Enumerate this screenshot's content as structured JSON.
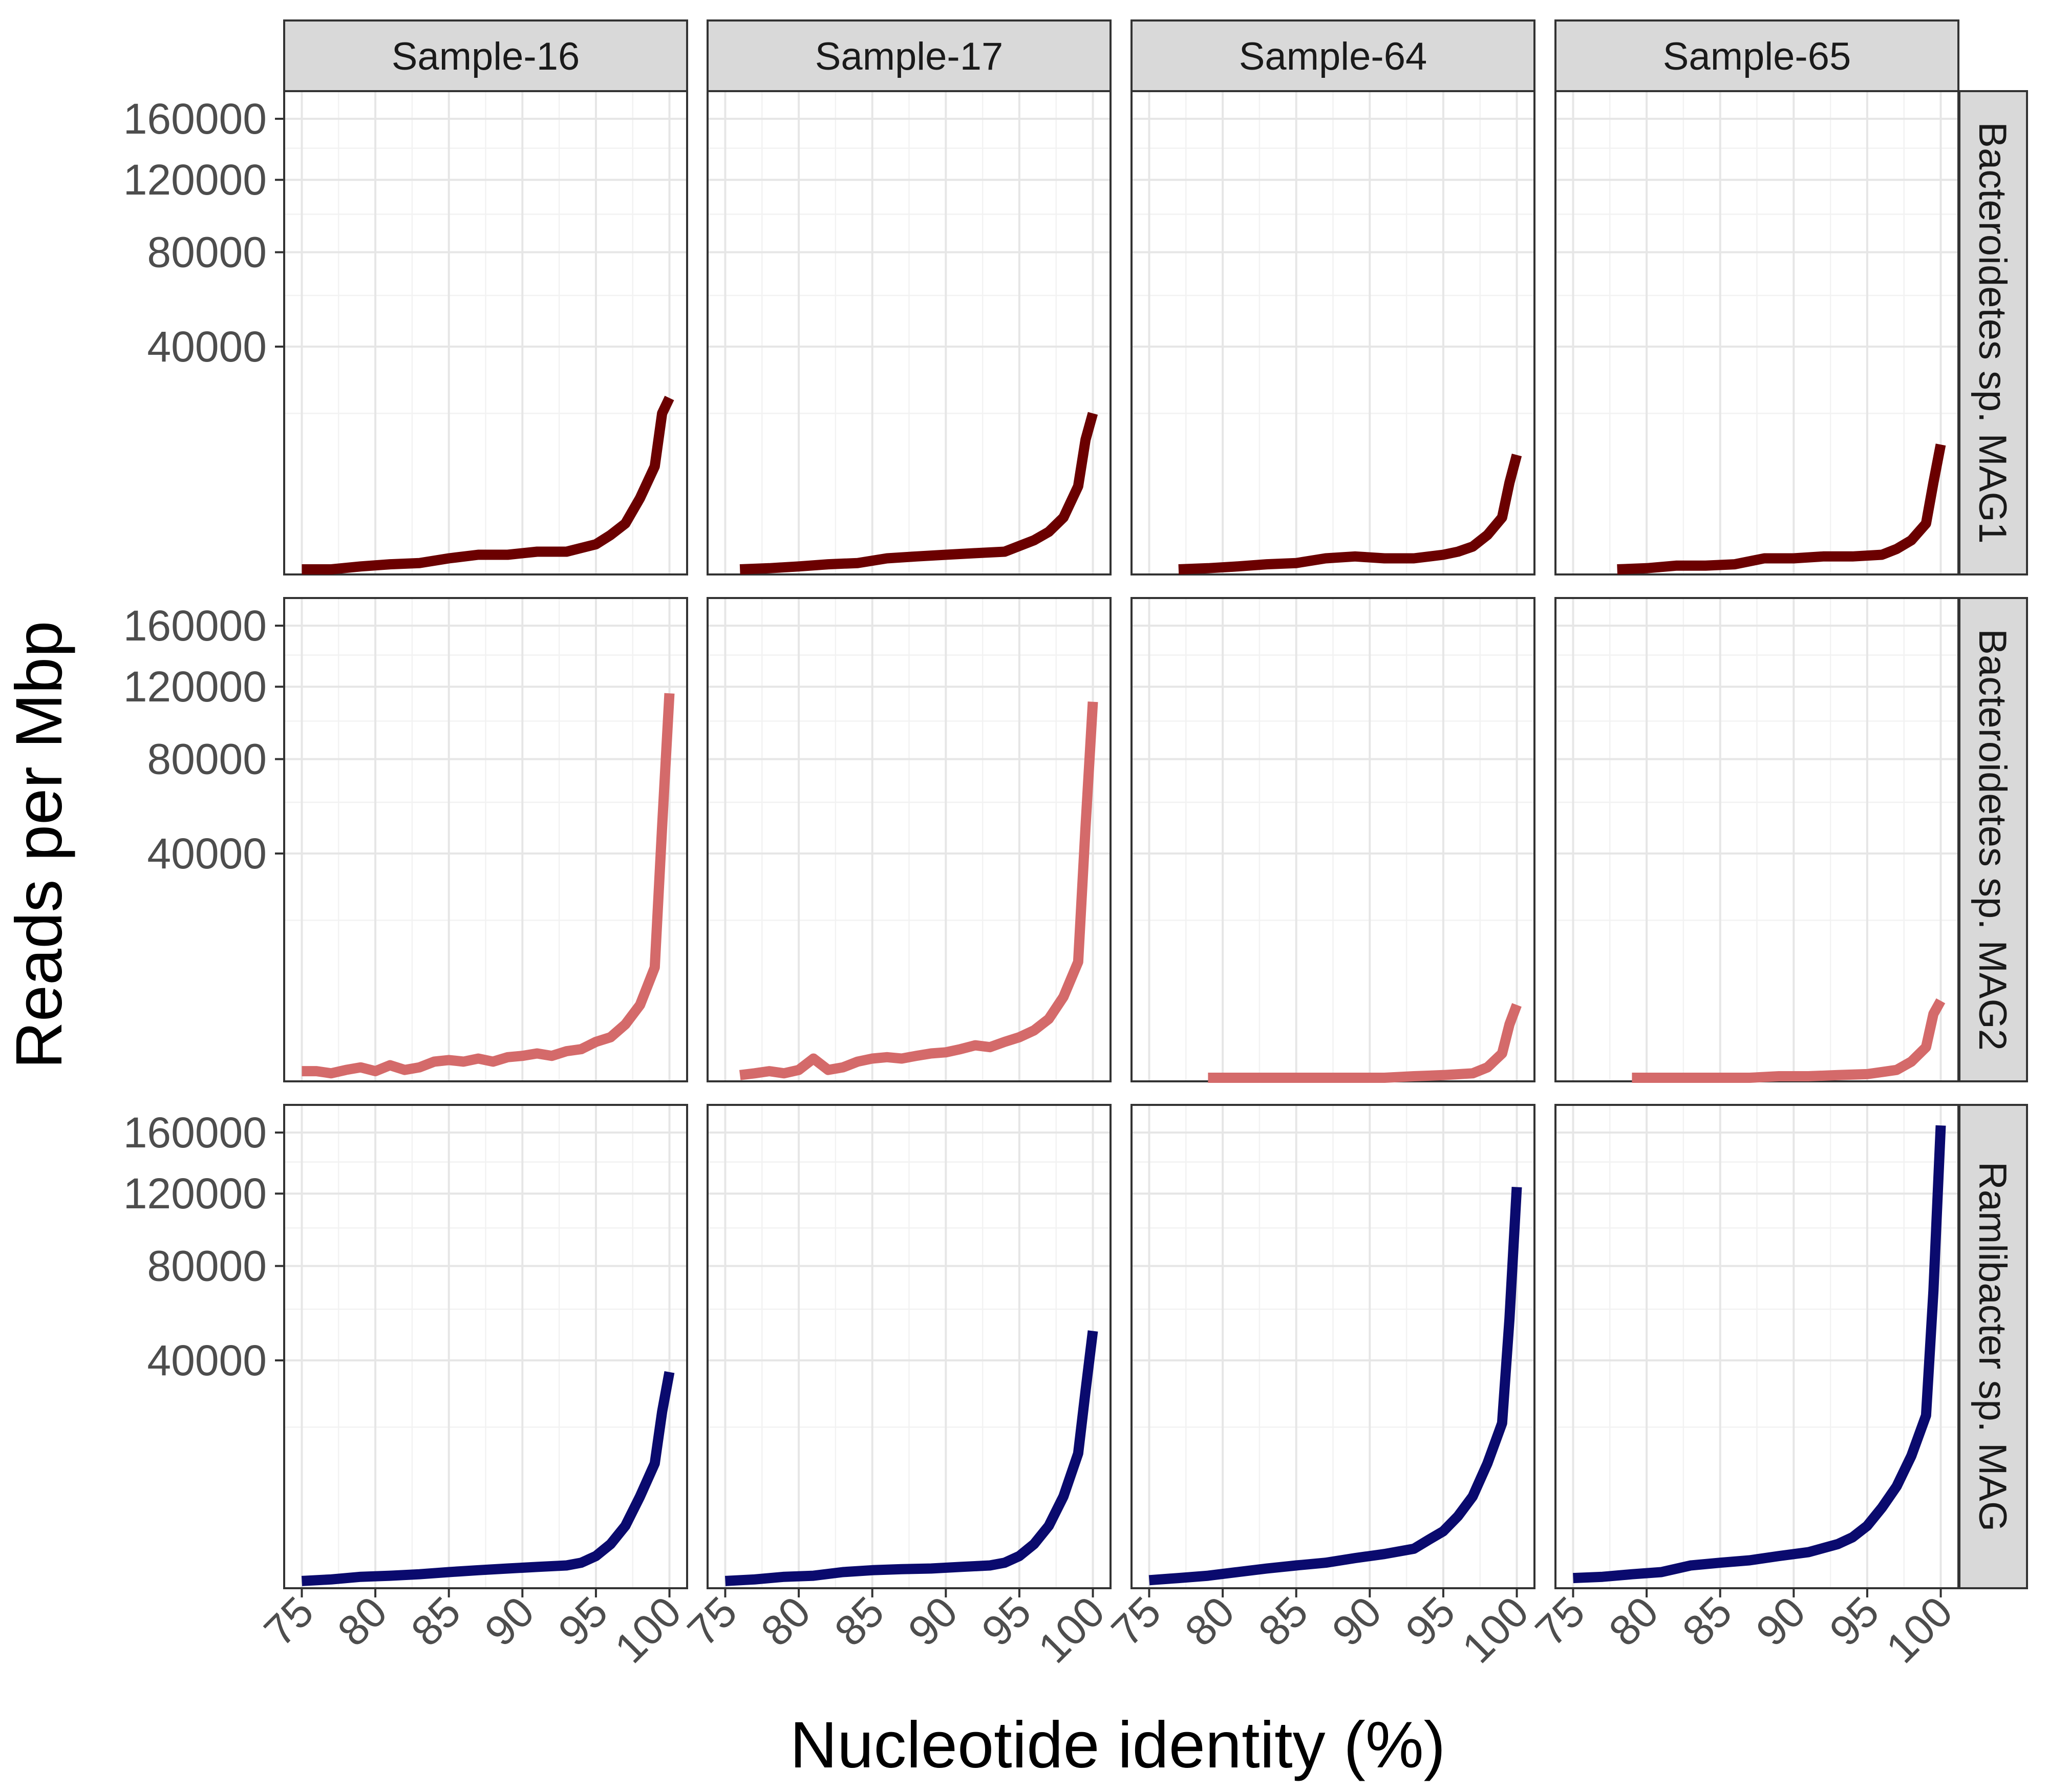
{
  "chart_data": {
    "type": "line",
    "layout": "facet-grid",
    "xlabel": "Nucleotide identity (%)",
    "ylabel": "Reads per Mbp",
    "xlim": [
      73.8,
      101.2
    ],
    "ylim": [
      0,
      180000
    ],
    "y_scale": "sqrt",
    "x_ticks": [
      75,
      80,
      85,
      90,
      95,
      100
    ],
    "x_tick_labels": [
      "75",
      "80",
      "85",
      "90",
      "95",
      "100"
    ],
    "y_ticks": [
      40000,
      80000,
      120000,
      160000
    ],
    "y_tick_labels": [
      "40000",
      "80000",
      "120000",
      "160000"
    ],
    "grid": true,
    "legend": "none",
    "columns": [
      "Sample-16",
      "Sample-17",
      "Sample-64",
      "Sample-65"
    ],
    "rows": [
      {
        "name": "Bacteroidetes sp. MAG1",
        "color": "#6b0000"
      },
      {
        "name": "Bacteroidetes sp. MAG2",
        "color": "#d46a6a"
      },
      {
        "name": "Ramlibacter sp. MAG",
        "color": "#0a0a6e"
      }
    ],
    "panels": [
      {
        "row": 0,
        "col": 0,
        "x": [
          75,
          77,
          79,
          81,
          83,
          85,
          87,
          89,
          91,
          93,
          95,
          96,
          97,
          98,
          99,
          99.5,
          100
        ],
        "y": [
          20,
          20,
          50,
          80,
          100,
          200,
          300,
          300,
          400,
          400,
          700,
          1200,
          2000,
          4500,
          9000,
          20000,
          24000
        ]
      },
      {
        "row": 0,
        "col": 1,
        "x": [
          76,
          78,
          80,
          82,
          84,
          86,
          88,
          90,
          92,
          94,
          96,
          97,
          98,
          99,
          99.5,
          100
        ],
        "y": [
          20,
          30,
          50,
          80,
          100,
          200,
          250,
          300,
          350,
          400,
          900,
          1400,
          2500,
          6000,
          14000,
          20000
        ]
      },
      {
        "row": 0,
        "col": 2,
        "x": [
          77,
          79,
          81,
          83,
          85,
          87,
          89,
          91,
          93,
          95,
          96,
          97,
          98,
          99,
          99.5,
          100
        ],
        "y": [
          20,
          30,
          50,
          80,
          100,
          200,
          250,
          200,
          200,
          300,
          400,
          600,
          1200,
          2500,
          6500,
          11000
        ]
      },
      {
        "row": 0,
        "col": 3,
        "x": [
          78,
          80,
          82,
          84,
          86,
          88,
          90,
          92,
          94,
          96,
          97,
          98,
          99,
          99.5,
          100
        ],
        "y": [
          20,
          30,
          60,
          60,
          80,
          200,
          200,
          250,
          250,
          300,
          500,
          900,
          2000,
          6500,
          13000
        ]
      },
      {
        "row": 1,
        "col": 0,
        "x": [
          75,
          76,
          77,
          78,
          79,
          80,
          81,
          82,
          83,
          84,
          85,
          86,
          87,
          88,
          89,
          90,
          91,
          92,
          93,
          94,
          95,
          96,
          97,
          98,
          99,
          99.5,
          100
        ],
        "y": [
          80,
          80,
          50,
          100,
          150,
          80,
          200,
          100,
          150,
          300,
          350,
          300,
          400,
          300,
          450,
          500,
          600,
          500,
          700,
          800,
          1200,
          1500,
          2500,
          4500,
          10000,
          50000,
          116000
        ]
      },
      {
        "row": 1,
        "col": 1,
        "x": [
          76,
          77,
          78,
          79,
          80,
          81,
          82,
          83,
          84,
          85,
          86,
          87,
          88,
          89,
          90,
          91,
          92,
          93,
          94,
          95,
          96,
          97,
          98,
          99,
          99.5,
          100
        ],
        "y": [
          30,
          50,
          80,
          50,
          100,
          400,
          100,
          150,
          300,
          400,
          450,
          400,
          500,
          600,
          650,
          800,
          1000,
          900,
          1200,
          1500,
          2000,
          3000,
          5500,
          11000,
          50000,
          111000
        ]
      },
      {
        "row": 1,
        "col": 2,
        "x": [
          79,
          81,
          83,
          85,
          87,
          89,
          91,
          93,
          95,
          97,
          98,
          99,
          99.5,
          100
        ],
        "y": [
          10,
          10,
          10,
          10,
          10,
          10,
          10,
          20,
          30,
          50,
          150,
          600,
          2500,
          4500
        ]
      },
      {
        "row": 1,
        "col": 3,
        "x": [
          79,
          81,
          83,
          85,
          87,
          89,
          91,
          93,
          95,
          97,
          98,
          99,
          99.5,
          100
        ],
        "y": [
          10,
          10,
          10,
          10,
          10,
          20,
          20,
          30,
          40,
          100,
          300,
          900,
          3500,
          5000
        ]
      },
      {
        "row": 2,
        "col": 0,
        "x": [
          75,
          77,
          79,
          81,
          83,
          85,
          87,
          89,
          91,
          93,
          94,
          95,
          96,
          97,
          98,
          99,
          99.5,
          100
        ],
        "y": [
          40,
          60,
          100,
          120,
          150,
          200,
          250,
          300,
          350,
          400,
          500,
          800,
          1500,
          3000,
          6500,
          12000,
          24000,
          36000
        ]
      },
      {
        "row": 2,
        "col": 1,
        "x": [
          75,
          77,
          79,
          81,
          83,
          85,
          87,
          89,
          91,
          93,
          94,
          95,
          96,
          97,
          98,
          99,
          99.5,
          100
        ],
        "y": [
          40,
          60,
          100,
          120,
          200,
          250,
          280,
          300,
          350,
          400,
          500,
          800,
          1500,
          3000,
          6500,
          14000,
          30000,
          51000
        ]
      },
      {
        "row": 2,
        "col": 2,
        "x": [
          75,
          77,
          79,
          81,
          83,
          85,
          87,
          89,
          91,
          93,
          94,
          95,
          96,
          97,
          98,
          99,
          99.5,
          100
        ],
        "y": [
          50,
          80,
          120,
          200,
          300,
          400,
          500,
          700,
          900,
          1200,
          1800,
          2500,
          4000,
          6500,
          12000,
          21000,
          56000,
          124000
        ]
      },
      {
        "row": 2,
        "col": 3,
        "x": [
          75,
          77,
          79,
          81,
          83,
          85,
          87,
          89,
          91,
          93,
          94,
          95,
          96,
          97,
          98,
          99,
          99.5,
          100
        ],
        "y": [
          80,
          100,
          150,
          200,
          400,
          500,
          600,
          800,
          1000,
          1500,
          2000,
          3000,
          5000,
          8000,
          13500,
          23000,
          68000,
          165000
        ]
      }
    ]
  }
}
